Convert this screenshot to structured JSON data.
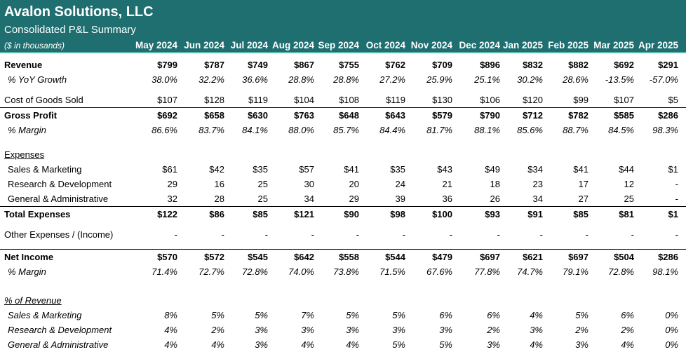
{
  "header": {
    "company": "Avalon Solutions, LLC",
    "subtitle": "Consolidated P&L Summary",
    "units": "($ in thousands)",
    "months": [
      "May 2024",
      "Jun 2024",
      "Jul 2024",
      "Aug 2024",
      "Sep 2024",
      "Oct 2024",
      "Nov 2024",
      "Dec 2024",
      "Jan 2025",
      "Feb 2025",
      "Mar 2025",
      "Apr 2025"
    ]
  },
  "rows": {
    "revenue": {
      "label": "Revenue",
      "values": [
        "$799",
        "$787",
        "$749",
        "$867",
        "$755",
        "$762",
        "$709",
        "$896",
        "$832",
        "$882",
        "$692",
        "$291"
      ]
    },
    "yoy_growth": {
      "label": "% YoY Growth",
      "values": [
        "38.0%",
        "32.2%",
        "36.6%",
        "28.8%",
        "28.8%",
        "27.2%",
        "25.9%",
        "25.1%",
        "30.2%",
        "28.6%",
        "-13.5%",
        "-57.0%"
      ]
    },
    "cogs": {
      "label": "Cost of Goods Sold",
      "values": [
        "$107",
        "$128",
        "$119",
        "$104",
        "$108",
        "$119",
        "$130",
        "$106",
        "$120",
        "$99",
        "$107",
        "$5"
      ]
    },
    "gross_profit": {
      "label": "Gross Profit",
      "values": [
        "$692",
        "$658",
        "$630",
        "$763",
        "$648",
        "$643",
        "$579",
        "$790",
        "$712",
        "$782",
        "$585",
        "$286"
      ]
    },
    "gross_margin": {
      "label": "% Margin",
      "values": [
        "86.6%",
        "83.7%",
        "84.1%",
        "88.0%",
        "85.7%",
        "84.4%",
        "81.7%",
        "88.1%",
        "85.6%",
        "88.7%",
        "84.5%",
        "98.3%"
      ]
    },
    "expenses_header": {
      "label": "Expenses"
    },
    "sales_marketing": {
      "label": "Sales & Marketing",
      "values": [
        "$61",
        "$42",
        "$35",
        "$57",
        "$41",
        "$35",
        "$43",
        "$49",
        "$34",
        "$41",
        "$44",
        "$1"
      ]
    },
    "research_dev": {
      "label": "Research & Development",
      "values": [
        "29",
        "16",
        "25",
        "30",
        "20",
        "24",
        "21",
        "18",
        "23",
        "17",
        "12",
        "-"
      ]
    },
    "general_admin": {
      "label": "General & Administrative",
      "values": [
        "32",
        "28",
        "25",
        "34",
        "29",
        "39",
        "36",
        "26",
        "34",
        "27",
        "25",
        "-"
      ]
    },
    "total_expenses": {
      "label": "Total Expenses",
      "values": [
        "$122",
        "$86",
        "$85",
        "$121",
        "$90",
        "$98",
        "$100",
        "$93",
        "$91",
        "$85",
        "$81",
        "$1"
      ]
    },
    "other_expenses": {
      "label": "Other Expenses / (Income)",
      "values": [
        "-",
        "-",
        "-",
        "-",
        "-",
        "-",
        "-",
        "-",
        "-",
        "-",
        "-",
        "-"
      ]
    },
    "net_income": {
      "label": "Net Income",
      "values": [
        "$570",
        "$572",
        "$545",
        "$642",
        "$558",
        "$544",
        "$479",
        "$697",
        "$621",
        "$697",
        "$504",
        "$286"
      ]
    },
    "net_margin": {
      "label": "% Margin",
      "values": [
        "71.4%",
        "72.7%",
        "72.8%",
        "74.0%",
        "73.8%",
        "71.5%",
        "67.6%",
        "77.8%",
        "74.7%",
        "79.1%",
        "72.8%",
        "98.1%"
      ]
    },
    "pct_revenue_header": {
      "label": "% of Revenue"
    },
    "pct_sales_marketing": {
      "label": "Sales & Marketing",
      "values": [
        "8%",
        "5%",
        "5%",
        "7%",
        "5%",
        "5%",
        "6%",
        "6%",
        "4%",
        "5%",
        "6%",
        "0%"
      ]
    },
    "pct_research_dev": {
      "label": "Research & Development",
      "values": [
        "4%",
        "2%",
        "3%",
        "3%",
        "3%",
        "3%",
        "3%",
        "2%",
        "3%",
        "2%",
        "2%",
        "0%"
      ]
    },
    "pct_general_admin": {
      "label": "General & Administrative",
      "values": [
        "4%",
        "4%",
        "3%",
        "4%",
        "4%",
        "5%",
        "5%",
        "3%",
        "4%",
        "3%",
        "4%",
        "0%"
      ]
    }
  },
  "colors": {
    "header_bg": "#1f6e70",
    "header_accent": "#5fb8b2"
  }
}
